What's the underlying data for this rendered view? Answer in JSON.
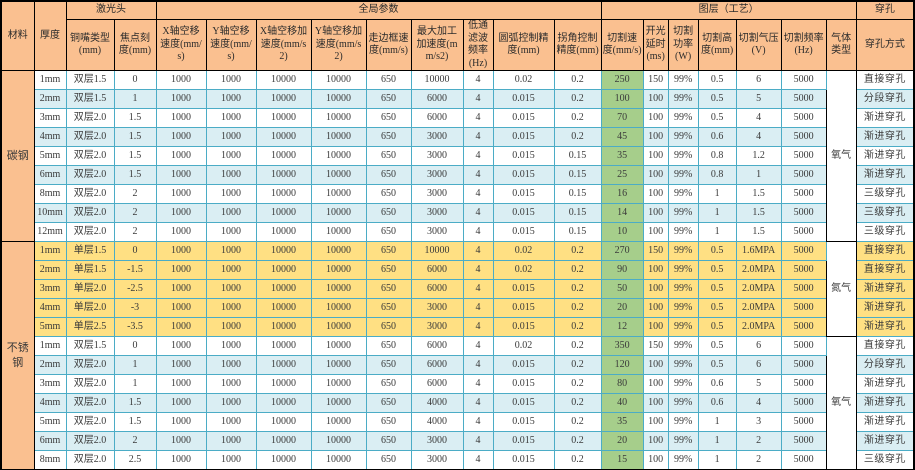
{
  "header": {
    "groups": [
      {
        "label": "材料",
        "colspan": 1,
        "rowspan": 2
      },
      {
        "label": "厚度",
        "colspan": 1,
        "rowspan": 2
      },
      {
        "label": "激光头",
        "colspan": 2,
        "rowspan": 1
      },
      {
        "label": "全局参数",
        "colspan": 9,
        "rowspan": 1
      },
      {
        "label": "图层（工艺）",
        "colspan": 7,
        "rowspan": 1
      },
      {
        "label": "穿孔",
        "colspan": 1,
        "rowspan": 1
      }
    ],
    "columns": [
      "铜嘴类型(mm)",
      "焦点刻度(mm)",
      "X轴空移速度(mm/s)",
      "Y轴空移速度(mm/s)",
      "X轴空移加速度(mm/s2)",
      "Y轴空移加速度(mm/s2)",
      "走边框速度(mm/s)",
      "最大加工加速度(mm/s2)",
      "低通滤波频率(Hz)",
      "圆弧控制精度(mm)",
      "拐角控制精度(mm)",
      "切割速度(mm/s)",
      "开光延时(ms)",
      "切割功率(W)",
      "切割高度(mm)",
      "切割气压(V)",
      "切割频率(Hz)",
      "气体类型",
      "穿孔方式"
    ]
  },
  "colors": {
    "header_bg": "#FAC090",
    "row_blue": "#DAEEF3",
    "row_yellow": "#FFE083",
    "speed_green": "#A6CE8B",
    "border_teal": "#4BACC6",
    "border_dark": "#000000"
  },
  "sections": [
    {
      "material": "碳钢",
      "gas_groups": [
        {
          "gas": "氧气",
          "span": 9
        }
      ],
      "rows": [
        {
          "style": "plain",
          "cells": [
            "1mm",
            "双层1.5",
            "0",
            "1000",
            "1000",
            "10000",
            "10000",
            "650",
            "10000",
            "4",
            "0.02",
            "0.2",
            "250",
            "150",
            "99%",
            "0.5",
            "6",
            "5000",
            "直接穿孔"
          ]
        },
        {
          "style": "blue",
          "cells": [
            "2mm",
            "双层1.5",
            "1",
            "1000",
            "1000",
            "10000",
            "10000",
            "650",
            "6000",
            "4",
            "0.015",
            "0.2",
            "100",
            "100",
            "99%",
            "0.5",
            "5",
            "5000",
            "分段穿孔"
          ]
        },
        {
          "style": "plain",
          "cells": [
            "3mm",
            "双层2.0",
            "1.5",
            "1000",
            "1000",
            "10000",
            "10000",
            "650",
            "6000",
            "4",
            "0.015",
            "0.2",
            "70",
            "100",
            "99%",
            "0.5",
            "4",
            "5000",
            "渐进穿孔"
          ]
        },
        {
          "style": "blue",
          "cells": [
            "4mm",
            "双层2.0",
            "1.5",
            "1000",
            "1000",
            "10000",
            "10000",
            "650",
            "3000",
            "4",
            "0.015",
            "0.2",
            "45",
            "100",
            "99%",
            "0.6",
            "4",
            "5000",
            "渐进穿孔"
          ]
        },
        {
          "style": "plain",
          "cells": [
            "5mm",
            "双层2.0",
            "1.5",
            "1000",
            "1000",
            "10000",
            "10000",
            "650",
            "3000",
            "4",
            "0.015",
            "0.15",
            "35",
            "100",
            "99%",
            "0.8",
            "1.2",
            "5000",
            "渐进穿孔"
          ]
        },
        {
          "style": "blue",
          "cells": [
            "6mm",
            "双层2.0",
            "1.5",
            "1000",
            "1000",
            "10000",
            "10000",
            "650",
            "3000",
            "4",
            "0.015",
            "0.15",
            "25",
            "100",
            "99%",
            "0.8",
            "1",
            "5000",
            "渐进穿孔"
          ]
        },
        {
          "style": "plain",
          "cells": [
            "8mm",
            "双层2.0",
            "2",
            "1000",
            "1000",
            "10000",
            "10000",
            "650",
            "3000",
            "4",
            "0.015",
            "0.15",
            "16",
            "100",
            "99%",
            "1",
            "1.5",
            "5000",
            "三级穿孔"
          ]
        },
        {
          "style": "blue",
          "cells": [
            "10mm",
            "双层2.0",
            "2",
            "1000",
            "1000",
            "10000",
            "10000",
            "650",
            "3000",
            "4",
            "0.015",
            "0.15",
            "14",
            "100",
            "99%",
            "1",
            "1.5",
            "5000",
            "三级穿孔"
          ]
        },
        {
          "style": "plain",
          "cells": [
            "12mm",
            "双层2.0",
            "2",
            "1000",
            "1000",
            "10000",
            "10000",
            "650",
            "3000",
            "4",
            "0.015",
            "0.15",
            "10",
            "100",
            "99%",
            "1",
            "1.5",
            "5000",
            "三级穿孔"
          ]
        }
      ]
    },
    {
      "material": "不锈钢",
      "gas_groups": [
        {
          "gas": "氮气",
          "span": 5
        },
        {
          "gas": "氧气",
          "span": 7
        }
      ],
      "rows": [
        {
          "style": "yellow",
          "cells": [
            "1mm",
            "单层1.5",
            "0",
            "1000",
            "1000",
            "10000",
            "10000",
            "650",
            "10000",
            "4",
            "0.02",
            "0.2",
            "270",
            "150",
            "99%",
            "0.5",
            "1.6MPA",
            "5000",
            "直接穿孔"
          ]
        },
        {
          "style": "yellow",
          "cells": [
            "2mm",
            "单层1.5",
            "-1.5",
            "1000",
            "1000",
            "10000",
            "10000",
            "650",
            "6000",
            "4",
            "0.02",
            "0.2",
            "90",
            "100",
            "99%",
            "0.5",
            "2.0MPA",
            "5000",
            "直接穿孔"
          ]
        },
        {
          "style": "yellow",
          "cells": [
            "3mm",
            "单层2.0",
            "-2.5",
            "1000",
            "1000",
            "10000",
            "10000",
            "650",
            "6000",
            "4",
            "0.015",
            "0.2",
            "50",
            "100",
            "99%",
            "0.5",
            "2.0MPA",
            "5000",
            "渐进穿孔"
          ]
        },
        {
          "style": "yellow",
          "cells": [
            "4mm",
            "单层2.0",
            "-3",
            "1000",
            "1000",
            "10000",
            "10000",
            "650",
            "3000",
            "4",
            "0.015",
            "0.2",
            "20",
            "100",
            "99%",
            "0.5",
            "2.0MPA",
            "5000",
            "渐进穿孔"
          ]
        },
        {
          "style": "yellow",
          "cells": [
            "5mm",
            "单层2.5",
            "-3.5",
            "1000",
            "1000",
            "10000",
            "10000",
            "650",
            "3000",
            "4",
            "0.015",
            "0.2",
            "12",
            "100",
            "99%",
            "0.5",
            "2.0MPA",
            "5000",
            "渐进穿孔"
          ]
        },
        {
          "style": "plain",
          "cells": [
            "1mm",
            "双层1.5",
            "0",
            "1000",
            "1000",
            "10000",
            "10000",
            "650",
            "6000",
            "4",
            "0.02",
            "0.2",
            "350",
            "150",
            "99%",
            "0.5",
            "6",
            "5000",
            "直接穿孔"
          ]
        },
        {
          "style": "blue",
          "cells": [
            "2mm",
            "双层2.0",
            "1",
            "1000",
            "1000",
            "10000",
            "10000",
            "650",
            "6000",
            "4",
            "0.015",
            "0.2",
            "120",
            "100",
            "99%",
            "0.5",
            "6",
            "5000",
            "分段穿孔"
          ]
        },
        {
          "style": "plain",
          "cells": [
            "3mm",
            "双层2.0",
            "1",
            "1000",
            "1000",
            "10000",
            "10000",
            "650",
            "6000",
            "4",
            "0.015",
            "0.2",
            "80",
            "100",
            "99%",
            "0.6",
            "5",
            "5000",
            "渐进穿孔"
          ]
        },
        {
          "style": "blue",
          "cells": [
            "4mm",
            "双层2.0",
            "1.5",
            "1000",
            "1000",
            "10000",
            "10000",
            "650",
            "4000",
            "4",
            "0.015",
            "0.2",
            "40",
            "100",
            "99%",
            "0.6",
            "4",
            "5000",
            "渐进穿孔"
          ]
        },
        {
          "style": "plain",
          "cells": [
            "5mm",
            "双层2.0",
            "1.5",
            "1000",
            "1000",
            "10000",
            "10000",
            "650",
            "4000",
            "4",
            "0.015",
            "0.2",
            "35",
            "100",
            "99%",
            "1",
            "3",
            "5000",
            "渐进穿孔"
          ]
        },
        {
          "style": "blue",
          "cells": [
            "6mm",
            "双层2.0",
            "2",
            "1000",
            "1000",
            "10000",
            "10000",
            "650",
            "3000",
            "4",
            "0.015",
            "0.2",
            "20",
            "100",
            "99%",
            "1",
            "2",
            "5000",
            "渐进穿孔"
          ]
        },
        {
          "style": "plain",
          "cells": [
            "8mm",
            "双层2.0",
            "2.5",
            "1000",
            "1000",
            "10000",
            "10000",
            "650",
            "3000",
            "4",
            "0.015",
            "0.2",
            "15",
            "100",
            "99%",
            "1",
            "2",
            "5000",
            "三级穿孔"
          ]
        }
      ]
    }
  ]
}
